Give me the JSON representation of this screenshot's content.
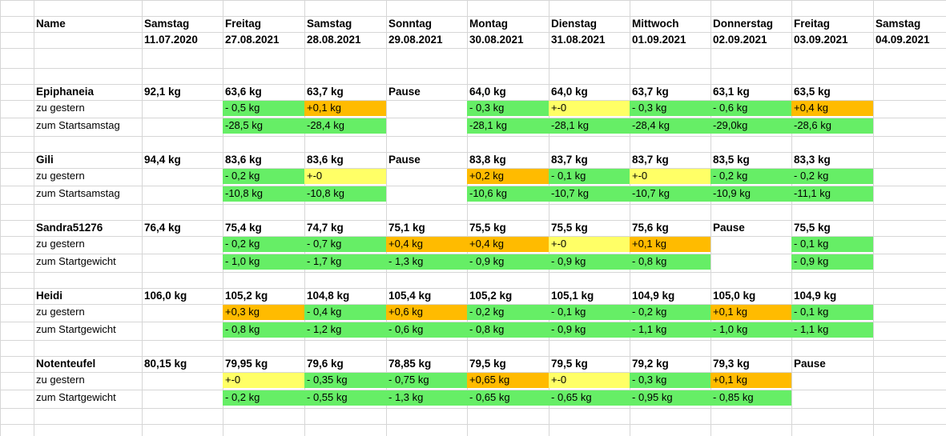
{
  "header": {
    "name_label": "Name",
    "columns": [
      {
        "day": "Samstag",
        "date": "11.07.2020"
      },
      {
        "day": "Freitag",
        "date": "27.08.2021"
      },
      {
        "day": "Samstag",
        "date": "28.08.2021"
      },
      {
        "day": "Sonntag",
        "date": "29.08.2021"
      },
      {
        "day": "Montag",
        "date": "30.08.2021"
      },
      {
        "day": "Dienstag",
        "date": "31.08.2021"
      },
      {
        "day": "Mittwoch",
        "date": "01.09.2021"
      },
      {
        "day": "Donnerstag",
        "date": "02.09.2021"
      },
      {
        "day": "Freitag",
        "date": "03.09.2021"
      },
      {
        "day": "Samstag",
        "date": "04.09.2021"
      }
    ]
  },
  "colors": {
    "green": "#66ee66",
    "orange": "#ffbb00",
    "yellow": "#ffff66"
  },
  "participants": [
    {
      "name": "Epiphaneia",
      "weights": [
        "92,1 kg",
        "63,6 kg",
        "63,7 kg",
        "Pause",
        "64,0 kg",
        "64,0 kg",
        "63,7 kg",
        "63,1 kg",
        "63,5 kg",
        ""
      ],
      "diff_label": "zu gestern",
      "diffs": [
        "",
        "- 0,5 kg",
        "+0,1 kg",
        "",
        "- 0,3 kg",
        "+-0",
        "- 0,3 kg",
        "- 0,6 kg",
        "+0,4 kg",
        ""
      ],
      "diff_colors": [
        "",
        "green",
        "orange",
        "",
        "green",
        "yellow",
        "green",
        "green",
        "orange",
        ""
      ],
      "total_label": "zum Startsamstag",
      "totals": [
        "",
        "-28,5 kg",
        "-28,4 kg",
        "",
        "-28,1 kg",
        "-28,1 kg",
        "-28,4 kg",
        "-29,0kg",
        "-28,6 kg",
        ""
      ],
      "total_colors": [
        "",
        "green",
        "green",
        "",
        "green",
        "green",
        "green",
        "green",
        "green",
        ""
      ]
    },
    {
      "name": "Gili",
      "weights": [
        "94,4 kg",
        "83,6 kg",
        "83,6 kg",
        "Pause",
        "83,8 kg",
        "83,7 kg",
        "83,7 kg",
        "83,5 kg",
        "83,3 kg",
        ""
      ],
      "diff_label": "zu gestern",
      "diffs": [
        "",
        "- 0,2 kg",
        "+-0",
        "",
        "+0,2 kg",
        "- 0,1 kg",
        "+-0",
        "- 0,2 kg",
        "- 0,2 kg",
        ""
      ],
      "diff_colors": [
        "",
        "green",
        "yellow",
        "",
        "orange",
        "green",
        "yellow",
        "green",
        "green",
        ""
      ],
      "total_label": "zum Startsamstag",
      "totals": [
        "",
        "-10,8 kg",
        "-10,8 kg",
        "",
        "-10,6 kg",
        "-10,7 kg",
        "-10,7 kg",
        "-10,9 kg",
        "-11,1 kg",
        ""
      ],
      "total_colors": [
        "",
        "green",
        "green",
        "",
        "green",
        "green",
        "green",
        "green",
        "green",
        ""
      ]
    },
    {
      "name": "Sandra51276",
      "weights": [
        "76,4 kg",
        "75,4 kg",
        "74,7 kg",
        "75,1 kg",
        "75,5 kg",
        "75,5 kg",
        "75,6 kg",
        "Pause",
        "75,5 kg",
        ""
      ],
      "diff_label": "zu gestern",
      "diffs": [
        "",
        "- 0,2 kg",
        "- 0,7 kg",
        "+0,4 kg",
        "+0,4 kg",
        "+-0",
        "+0,1 kg",
        "",
        "- 0,1 kg",
        ""
      ],
      "diff_colors": [
        "",
        "green",
        "green",
        "orange",
        "orange",
        "yellow",
        "orange",
        "",
        "green",
        ""
      ],
      "total_label": "zum Startgewicht",
      "totals": [
        "",
        "- 1,0 kg",
        "- 1,7 kg",
        "- 1,3 kg",
        "- 0,9 kg",
        "- 0,9 kg",
        "- 0,8 kg",
        "",
        "- 0,9 kg",
        ""
      ],
      "total_colors": [
        "",
        "green",
        "green",
        "green",
        "green",
        "green",
        "green",
        "",
        "green",
        ""
      ]
    },
    {
      "name": "Heidi",
      "weights": [
        "106,0 kg",
        "105,2 kg",
        "104,8 kg",
        "105,4 kg",
        "105,2 kg",
        "105,1 kg",
        "104,9 kg",
        "105,0 kg",
        "104,9 kg",
        ""
      ],
      "diff_label": "zu gestern",
      "diffs": [
        "",
        "+0,3 kg",
        "- 0,4 kg",
        "+0,6 kg",
        "- 0,2 kg",
        "- 0,1 kg",
        "- 0,2 kg",
        "+0,1 kg",
        "- 0,1 kg",
        ""
      ],
      "diff_colors": [
        "",
        "orange",
        "green",
        "orange",
        "green",
        "green",
        "green",
        "orange",
        "green",
        ""
      ],
      "total_label": "zum Startgewicht",
      "totals": [
        "",
        "- 0,8 kg",
        "- 1,2 kg",
        "- 0,6 kg",
        "- 0,8 kg",
        "- 0,9 kg",
        "- 1,1 kg",
        "- 1,0 kg",
        "- 1,1 kg",
        ""
      ],
      "total_colors": [
        "",
        "green",
        "green",
        "green",
        "green",
        "green",
        "green",
        "green",
        "green",
        ""
      ]
    },
    {
      "name": "Notenteufel",
      "weights": [
        "80,15 kg",
        "79,95 kg",
        "79,6 kg",
        "78,85 kg",
        "79,5 kg",
        "79,5 kg",
        "79,2 kg",
        "79,3 kg",
        "Pause",
        ""
      ],
      "diff_label": "zu gestern",
      "diffs": [
        "",
        "+-0",
        "- 0,35 kg",
        "- 0,75 kg",
        "+0,65 kg",
        "+-0",
        "- 0,3 kg",
        "+0,1 kg",
        "",
        ""
      ],
      "diff_colors": [
        "",
        "yellow",
        "green",
        "green",
        "orange",
        "yellow",
        "green",
        "orange",
        "",
        ""
      ],
      "total_label": "zum Startgewicht",
      "totals": [
        "",
        "- 0,2 kg",
        "- 0,55 kg",
        "- 1,3 kg",
        "- 0,65 kg",
        "- 0,65 kg",
        "- 0,95 kg",
        "- 0,85 kg",
        "",
        ""
      ],
      "total_colors": [
        "",
        "green",
        "green",
        "green",
        "green",
        "green",
        "green",
        "green",
        "",
        ""
      ]
    }
  ]
}
